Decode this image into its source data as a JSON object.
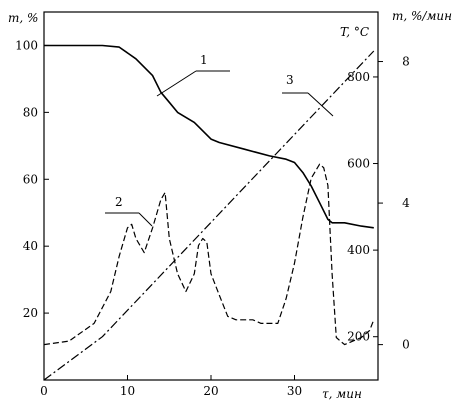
{
  "chart_data": {
    "type": "line",
    "axis_labels": {
      "left": "m, %",
      "right_inner": "T, °C",
      "right_outer": "m, %/мин",
      "bottom": "τ, мин"
    },
    "x_axis": {
      "range": [
        0,
        40
      ],
      "ticks": [
        0,
        10,
        20,
        30
      ]
    },
    "y_left": {
      "range": [
        0,
        110
      ],
      "ticks": [
        20,
        40,
        60,
        80,
        100
      ]
    },
    "y_right_inner": {
      "range": [
        100,
        950
      ],
      "ticks": [
        200,
        400,
        600,
        800
      ]
    },
    "y_right_outer": {
      "range": [
        -1,
        9.4
      ],
      "ticks": [
        0,
        4,
        8
      ]
    },
    "series": [
      {
        "label": "1",
        "axis": "left",
        "style": "solid",
        "x": [
          0,
          7,
          9,
          11,
          13,
          14,
          15,
          16,
          18,
          20,
          21,
          24,
          27,
          29,
          30,
          31,
          32,
          33,
          34,
          34.5,
          36,
          38,
          39.5
        ],
        "y": [
          100,
          100,
          99.5,
          96,
          91,
          86,
          83,
          80,
          77,
          72,
          71,
          69,
          67,
          66,
          65,
          62,
          58,
          53,
          48,
          47,
          47,
          46,
          45.5
        ]
      },
      {
        "label": "2",
        "axis": "right_outer",
        "style": "dashed",
        "x": [
          0,
          3,
          6,
          8,
          9,
          10,
          10.5,
          11,
          12,
          13,
          14,
          14.5,
          15,
          16,
          17,
          18,
          18.5,
          19,
          19.5,
          20,
          21,
          22,
          23,
          24,
          25,
          26,
          27,
          28,
          29,
          30,
          31,
          32,
          33,
          33.5,
          34,
          34.5,
          35,
          35.5,
          36,
          37,
          38,
          39,
          39.5
        ],
        "y": [
          0,
          0.1,
          0.6,
          1.5,
          2.5,
          3.3,
          3.4,
          3.0,
          2.6,
          3.3,
          4.1,
          4.3,
          3.0,
          2.0,
          1.5,
          2.0,
          2.8,
          3.0,
          2.9,
          2.0,
          1.4,
          0.8,
          0.7,
          0.7,
          0.7,
          0.6,
          0.6,
          0.6,
          1.3,
          2.3,
          3.6,
          4.7,
          5.1,
          5.0,
          4.5,
          2.0,
          0.2,
          0.1,
          0.0,
          0.1,
          0.2,
          0.4,
          0.7
        ]
      },
      {
        "label": "3",
        "axis": "right_inner",
        "style": "dashdot",
        "x": [
          0,
          7,
          39.5
        ],
        "y": [
          100,
          200,
          860
        ]
      }
    ],
    "callouts": [
      "1",
      "2",
      "3"
    ]
  }
}
